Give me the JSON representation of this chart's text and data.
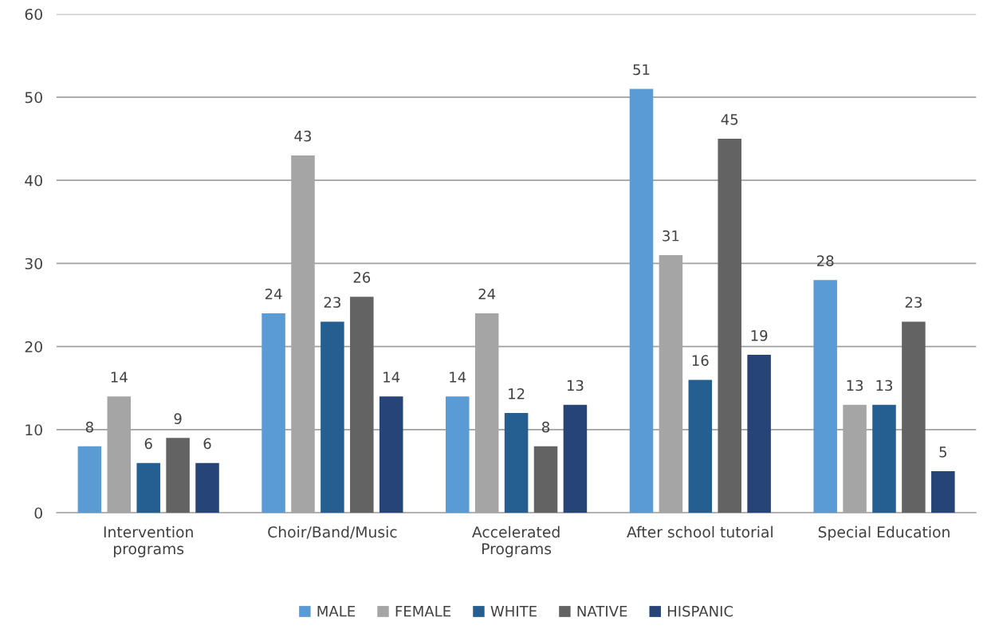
{
  "chart_data": {
    "type": "bar",
    "categories": [
      "Intervention\nprograms",
      "Choir/Band/Music",
      "Accelerated\nPrograms",
      "After school tutorial",
      "Special Education"
    ],
    "series": [
      {
        "name": "MALE",
        "color": "#5b9bd5",
        "values": [
          8,
          24,
          14,
          51,
          28
        ]
      },
      {
        "name": "FEMALE",
        "color": "#a5a5a5",
        "values": [
          14,
          43,
          24,
          31,
          13
        ]
      },
      {
        "name": "WHITE",
        "color": "#255e91",
        "values": [
          6,
          23,
          12,
          16,
          13
        ]
      },
      {
        "name": "NATIVE",
        "color": "#636363",
        "values": [
          9,
          26,
          8,
          45,
          23
        ]
      },
      {
        "name": "HISPANIC",
        "color": "#264478",
        "values": [
          6,
          14,
          13,
          19,
          5
        ]
      }
    ],
    "ylim": [
      0,
      60
    ],
    "yticks": [
      0,
      10,
      20,
      30,
      40,
      50,
      60
    ],
    "grid": "y",
    "legend": "bottom",
    "data_labels": true
  }
}
